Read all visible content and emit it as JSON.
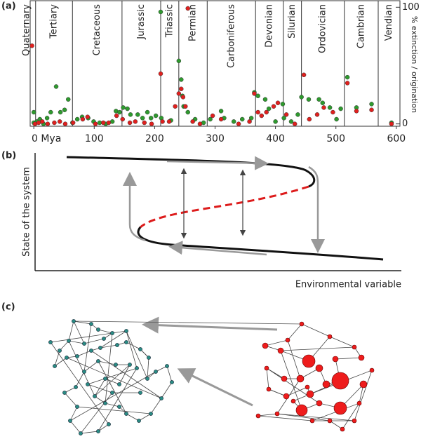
{
  "panel_labels": [
    "(a)",
    "(b)",
    "(c)"
  ],
  "chart_data": {
    "type": "scatter",
    "xlim": [
      -6,
      606
    ],
    "ylim": [
      -2,
      105
    ],
    "xticks": [
      {
        "value": 0,
        "label": "0 Mya"
      },
      100,
      200,
      300,
      400,
      500,
      600
    ],
    "yticks": [
      0,
      100
    ],
    "ylabel": "% extinction / origination",
    "periods": [
      "Quaternary",
      "Tertiary",
      "Cretaceous",
      "Jurassic",
      "Triassic",
      "Permian",
      "Carboniferous",
      "Devonian",
      "Silurian",
      "Ordovician",
      "Cambrian",
      "Vendian"
    ],
    "period_boundaries": [
      3,
      64,
      146,
      210,
      240,
      287,
      367,
      413,
      443,
      514,
      570
    ],
    "series": [
      {
        "color": "#2e9a2e",
        "x": [
          0,
          0,
          5,
          10,
          16,
          22,
          28,
          37,
          44,
          51,
          57,
          64,
          72,
          80,
          90,
          99,
          109,
          119,
          130,
          136,
          142,
          148,
          155,
          160,
          172,
          180,
          188,
          194,
          202,
          210,
          211,
          227,
          240,
          244,
          246,
          248,
          255,
          267,
          281,
          292,
          310,
          315,
          331,
          345,
          360,
          365,
          371,
          383,
          389,
          400,
          412,
          414,
          426,
          437,
          443,
          455,
          472,
          478,
          490,
          501,
          508,
          519,
          534,
          559,
          592
        ],
        "values": [
          1,
          10,
          2,
          4,
          0,
          5,
          10,
          32,
          10,
          12,
          21,
          1,
          4,
          6,
          5,
          2,
          1,
          0,
          2,
          11,
          10,
          14,
          13,
          8,
          8,
          5,
          10,
          5,
          7,
          96,
          5,
          3,
          54,
          38,
          24,
          15,
          10,
          4,
          1,
          4,
          11,
          5,
          2,
          4,
          5,
          27,
          24,
          21,
          13,
          2,
          17,
          5,
          2,
          8,
          23,
          21,
          21,
          18,
          14,
          4,
          13,
          40,
          14,
          17,
          1
        ]
      },
      {
        "color": "#e0201e",
        "x": [
          -3,
          2,
          8,
          14,
          23,
          34,
          43,
          52,
          65,
          81,
          89,
          102,
          115,
          124,
          137,
          147,
          159,
          168,
          183,
          195,
          210,
          213,
          224,
          234,
          240,
          244,
          247,
          251,
          255,
          263,
          275,
          296,
          310,
          339,
          357,
          365,
          371,
          377,
          385,
          397,
          404,
          418,
          432,
          447,
          456,
          469,
          480,
          495,
          519,
          534,
          559,
          592
        ],
        "values": [
          67,
          0,
          1,
          2,
          0,
          1,
          2,
          0,
          1,
          4,
          6,
          0,
          1,
          1,
          7,
          4,
          1,
          2,
          1,
          0,
          43,
          2,
          2,
          15,
          26,
          30,
          23,
          15,
          99,
          2,
          0,
          7,
          4,
          0,
          2,
          26,
          10,
          7,
          10,
          15,
          18,
          8,
          0,
          42,
          4,
          8,
          14,
          10,
          35,
          11,
          12,
          0
        ]
      }
    ]
  },
  "panel_b": {
    "ylabel": "State of the system",
    "xlabel": "Environmental variable"
  }
}
